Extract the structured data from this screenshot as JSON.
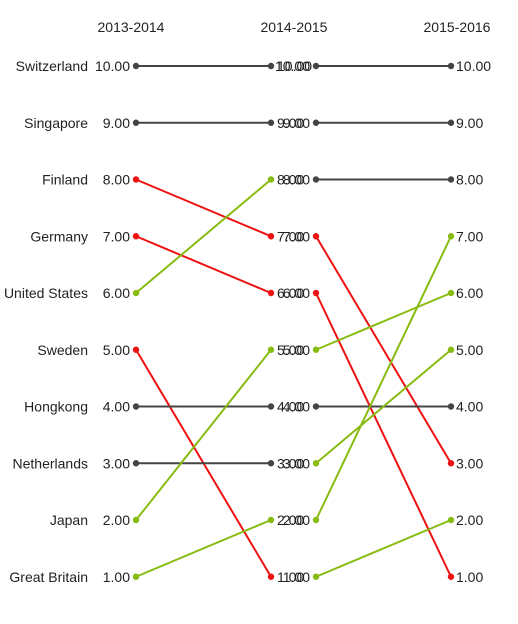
{
  "chart_data": {
    "type": "slope",
    "periods": [
      "2013-2014",
      "2014-2015",
      "2015-2016"
    ],
    "categories": [
      "Switzerland",
      "Singapore",
      "Finland",
      "Germany",
      "United States",
      "Sweden",
      "Hongkong",
      "Netherlands",
      "Japan",
      "Great Britain"
    ],
    "values": {
      "Switzerland": [
        10,
        10,
        10
      ],
      "Singapore": [
        9,
        9,
        9
      ],
      "Finland": [
        8,
        7,
        3
      ],
      "Germany": [
        7,
        6,
        1
      ],
      "United States": [
        6,
        8,
        8
      ],
      "Sweden": [
        5,
        1,
        2
      ],
      "Hongkong": [
        4,
        4,
        4
      ],
      "Netherlands": [
        3,
        3,
        5
      ],
      "Japan": [
        2,
        5,
        6
      ],
      "Great Britain": [
        1,
        2,
        7
      ]
    },
    "ylim": [
      1,
      10
    ],
    "tick_labels": [
      "10.00",
      "9.00",
      "8.00",
      "7.00",
      "6.00",
      "5.00",
      "4.00",
      "3.00",
      "2.00",
      "1.00"
    ],
    "colors": {
      "same": "#444444",
      "down": "#ee1111",
      "up": "#88bb11"
    }
  }
}
